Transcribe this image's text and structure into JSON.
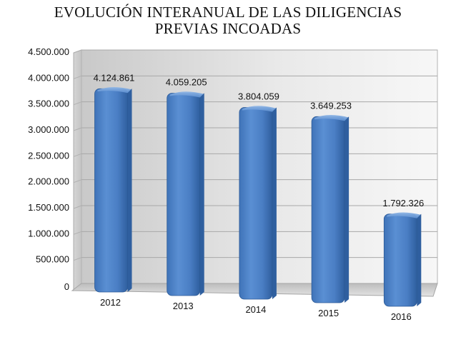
{
  "chart_data": {
    "type": "bar",
    "title_lines": [
      "EVOLUCIÓN INTERANUAL DE LAS DILIGENCIAS",
      "PREVIAS INCOADAS"
    ],
    "categories": [
      "2012",
      "2013",
      "2014",
      "2015",
      "2016"
    ],
    "values": [
      4124861,
      4059205,
      3804059,
      3649253,
      1792326
    ],
    "value_labels": [
      "4.124.861",
      "4.059.205",
      "3.804.059",
      "3.649.253",
      "1.792.326"
    ],
    "y_ticks": [
      0,
      500000,
      1000000,
      1500000,
      2000000,
      2500000,
      3000000,
      3500000,
      4000000,
      4500000
    ],
    "y_tick_labels": [
      "0",
      "500.000",
      "1.000.000",
      "1.500.000",
      "2.000.000",
      "2.500.000",
      "3.000.000",
      "3.500.000",
      "4.000.000",
      "4.500.000"
    ],
    "ylim": [
      0,
      4500000
    ],
    "grid": true,
    "bar_color": "#4a7ec4",
    "bar_top_color": "#6d9bd8",
    "bar_side_color": "#2f5f9f"
  }
}
